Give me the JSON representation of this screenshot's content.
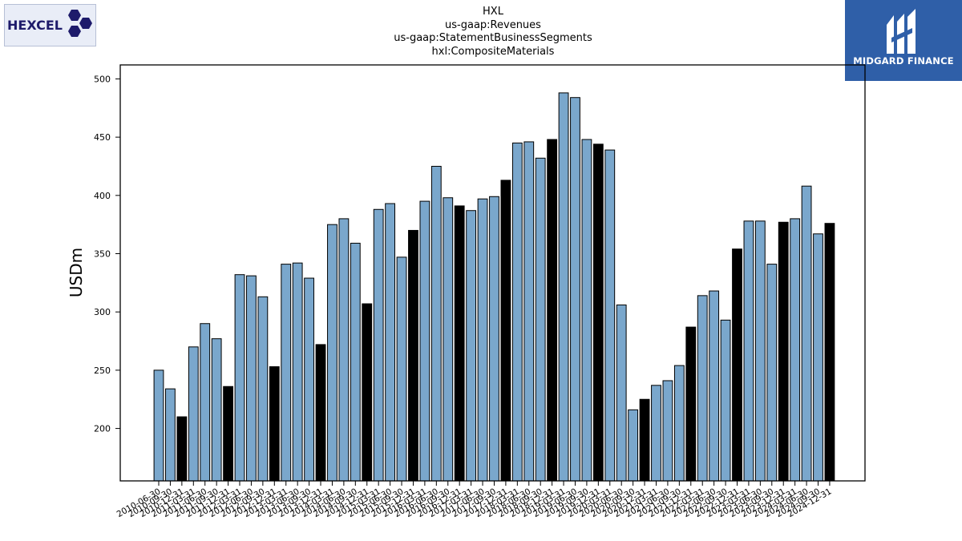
{
  "logos": {
    "company_wordmark": "HEXCEL",
    "company_mark": "®",
    "brand_name": "MIDGARD FINANCE"
  },
  "header": {
    "line1": "HXL",
    "line2": "us-gaap:Revenues",
    "line3": "us-gaap:StatementBusinessSegments",
    "line4": "hxl:CompositeMaterials"
  },
  "colors": {
    "quarter_bar": "#7aa7cc",
    "annual_bar": "#000000"
  },
  "chart_data": {
    "type": "bar",
    "title": "",
    "xlabel": "",
    "ylabel": "USDm",
    "ylim": [
      155,
      512
    ],
    "yticks": [
      200,
      250,
      300,
      350,
      400,
      450,
      500
    ],
    "grid": false,
    "categories": [
      "2010-06-30",
      "2010-09-30",
      "2010-12-31",
      "2011-03-31",
      "2011-06-30",
      "2011-09-30",
      "2011-12-31",
      "2012-03-31",
      "2012-06-30",
      "2012-09-30",
      "2012-12-31",
      "2013-03-31",
      "2013-06-30",
      "2013-09-30",
      "2013-12-31",
      "2014-03-31",
      "2014-06-30",
      "2014-09-30",
      "2014-12-31",
      "2015-03-31",
      "2015-06-30",
      "2015-09-30",
      "2015-12-31",
      "2016-03-31",
      "2016-06-30",
      "2016-09-30",
      "2016-12-31",
      "2017-03-31",
      "2017-06-30",
      "2017-09-30",
      "2017-12-31",
      "2018-03-31",
      "2018-06-30",
      "2018-09-30",
      "2018-12-31",
      "2019-03-31",
      "2019-06-30",
      "2019-09-30",
      "2019-12-31",
      "2020-03-31",
      "2020-06-30",
      "2020-09-30",
      "2020-12-31",
      "2021-03-31",
      "2021-06-30",
      "2021-09-30",
      "2021-12-31",
      "2022-03-31",
      "2022-06-30",
      "2022-09-30",
      "2022-12-31",
      "2023-03-31",
      "2023-06-30",
      "2023-09-30",
      "2023-12-31",
      "2024-03-31",
      "2024-06-30",
      "2024-09-30",
      "2024-12-31"
    ],
    "values": [
      250,
      234,
      210,
      270,
      290,
      277,
      236,
      332,
      331,
      313,
      253,
      341,
      342,
      329,
      272,
      375,
      380,
      359,
      307,
      388,
      393,
      347,
      370,
      395,
      425,
      398,
      391,
      387,
      397,
      399,
      413,
      445,
      446,
      432,
      448,
      488,
      484,
      448,
      444,
      439,
      306,
      216,
      225,
      237,
      241,
      254,
      287,
      314,
      318,
      293,
      354,
      378,
      378,
      341,
      377,
      380,
      408,
      367,
      376
    ],
    "annual_flags": [
      0,
      0,
      1,
      0,
      0,
      0,
      1,
      0,
      0,
      0,
      1,
      0,
      0,
      0,
      1,
      0,
      0,
      0,
      1,
      0,
      0,
      0,
      1,
      0,
      0,
      0,
      1,
      0,
      0,
      0,
      1,
      0,
      0,
      0,
      1,
      0,
      0,
      0,
      1,
      0,
      0,
      0,
      1,
      0,
      0,
      0,
      1,
      0,
      0,
      0,
      1,
      0,
      0,
      0,
      1,
      0,
      0,
      0,
      1
    ]
  }
}
